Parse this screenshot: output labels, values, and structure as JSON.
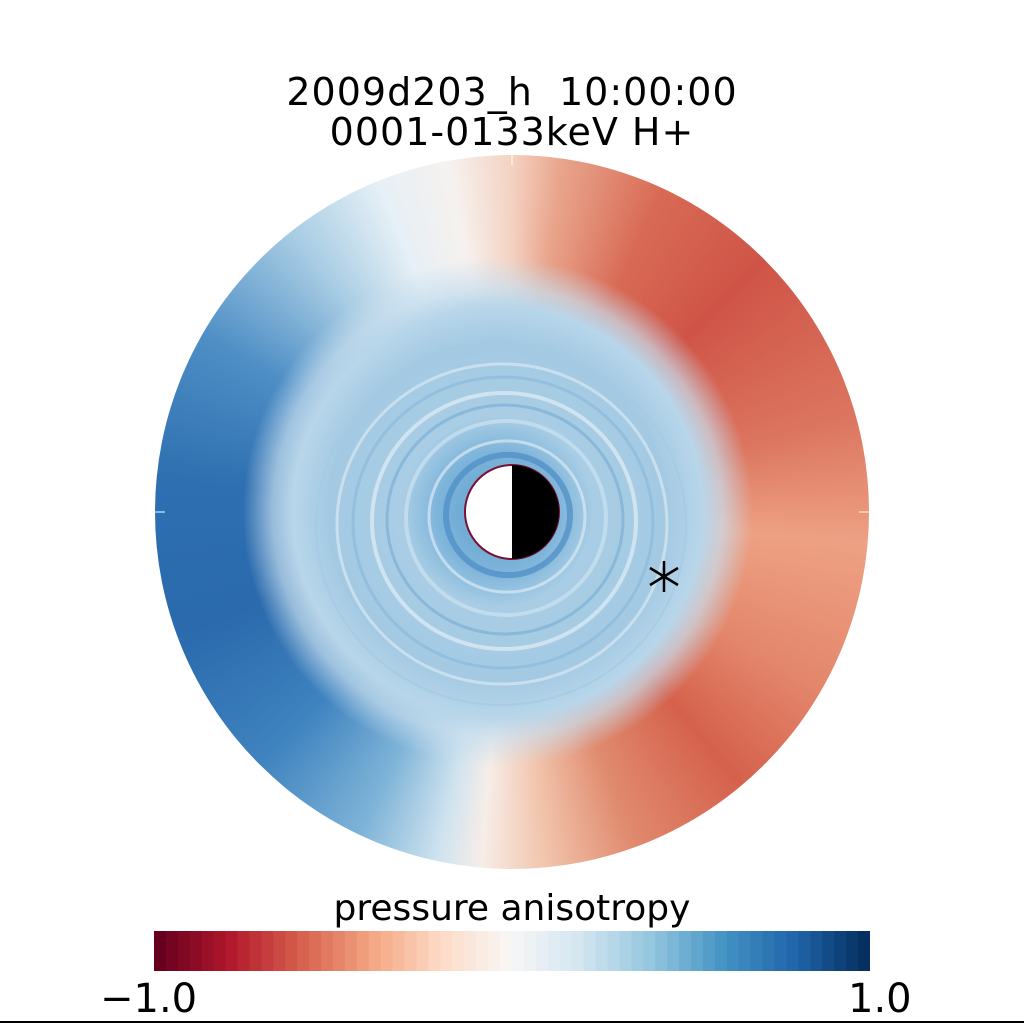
{
  "chart_data": {
    "type": "heatmap",
    "projection": "polar equatorial plane",
    "title": [
      "2009d203_h  10:00:00",
      "0001-0133keV H+"
    ],
    "colorbar": {
      "label": "pressure anisotropy",
      "range": [
        -1.0,
        1.0
      ],
      "tick_labels": [
        "-1.0",
        "1.0"
      ],
      "colormap": [
        "#67001f",
        "#b2182b",
        "#d6604d",
        "#f4a582",
        "#fddbc7",
        "#f7f7f7",
        "#d1e5f0",
        "#92c5de",
        "#4393c3",
        "#2166ac",
        "#053061"
      ],
      "levels": 60
    },
    "field_summary": {
      "dawn_side": "positive (blue, up to ~0.8)",
      "dusk_side": "negative (red, ~-0.5)",
      "inner_region": "positive (~0.3-0.4) with concentric ring structure"
    },
    "earth": "day/night circle at center",
    "marker": "asterisk (satellite position)"
  }
}
